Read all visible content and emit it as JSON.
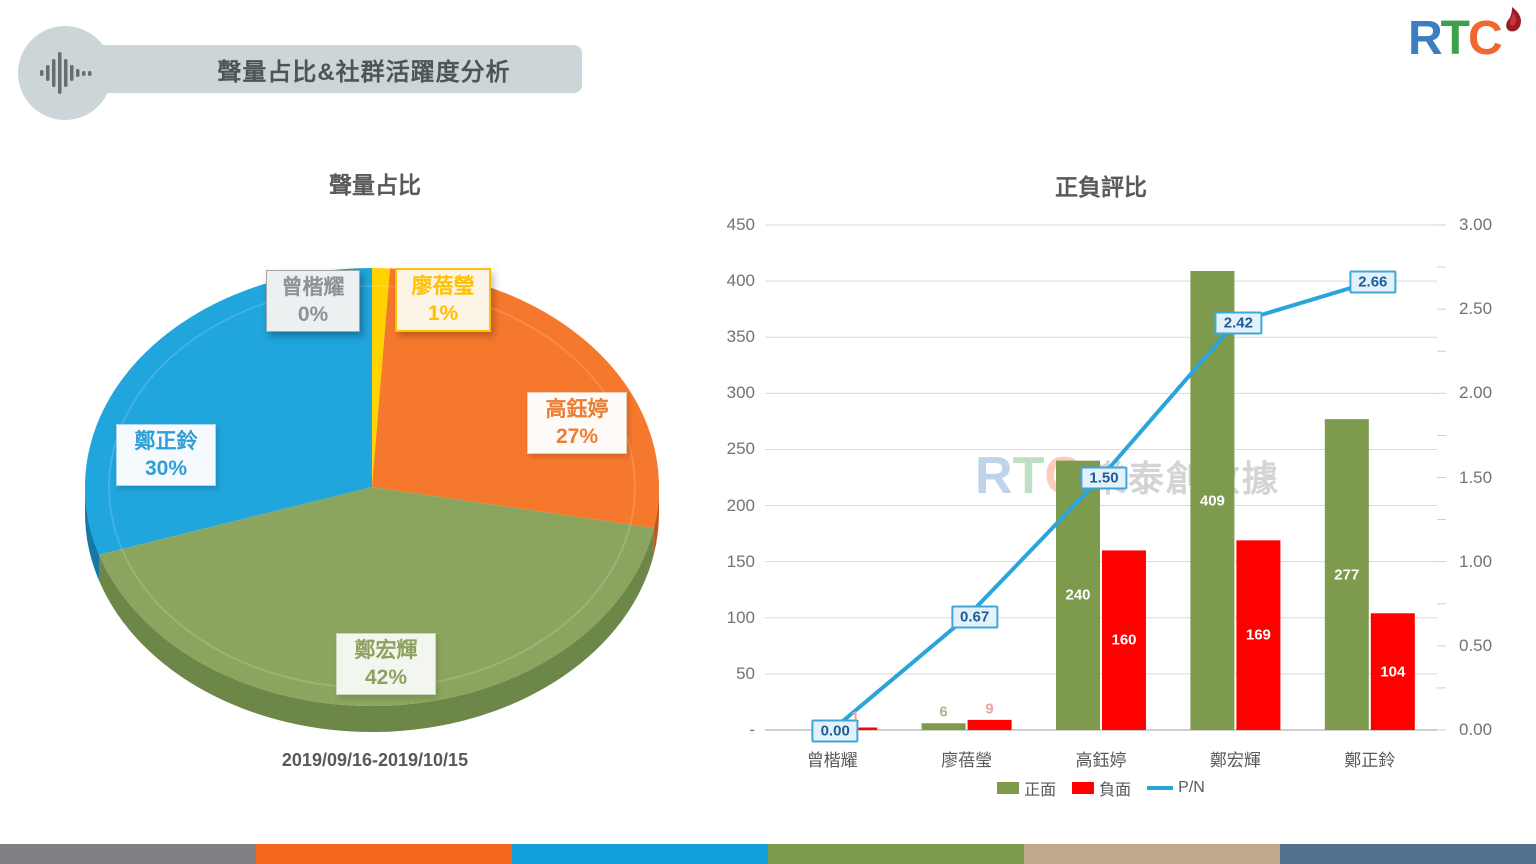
{
  "header": {
    "title": "聲量占比&社群活躍度分析"
  },
  "logo": {
    "r": "R",
    "t": "T",
    "c": "C"
  },
  "watermark": {
    "r": "R",
    "t": "T",
    "c": "C",
    "text": "樂泰創數據"
  },
  "chart_data": [
    {
      "type": "pie",
      "title": "聲量占比",
      "subtitle": "2019/09/16-2019/10/15",
      "labels": [
        "曾楷耀",
        "廖蓓瑩",
        "高鈺婷",
        "鄭宏輝",
        "鄭正鈴"
      ],
      "values": [
        0,
        1,
        27,
        42,
        30
      ],
      "pct_labels": [
        "0%",
        "1%",
        "27%",
        "42%",
        "30%"
      ],
      "colors": [
        "#b9bdbf",
        "#ffd200",
        "#f5782c",
        "#8ca55e",
        "#20a5dd"
      ],
      "dark_colors": [
        "#8e9294",
        "#c8a400",
        "#bf5a1d",
        "#6d8748",
        "#1679a5"
      ],
      "legend_position": "none",
      "style": "3d"
    },
    {
      "type": "bar",
      "title": "正負評比",
      "categories": [
        "曾楷耀",
        "廖蓓瑩",
        "高鈺婷",
        "鄭宏輝",
        "鄭正鈴"
      ],
      "series": [
        {
          "name": "正面",
          "kind": "bar",
          "color": "#7e9a4c",
          "values": [
            0,
            6,
            240,
            409,
            277
          ],
          "value_labels": [
            "",
            "6",
            "240",
            "409",
            "277"
          ],
          "small_label_color": "#a9b88c"
        },
        {
          "name": "負面",
          "kind": "bar",
          "color": "#fe0000",
          "values": [
            1,
            9,
            160,
            169,
            104
          ],
          "value_labels": [
            "1",
            "9",
            "160",
            "169",
            "104"
          ],
          "small_label_color": "#f3a2a2"
        },
        {
          "name": "P/N",
          "kind": "line",
          "color": "#2aa5dc",
          "values": [
            0.0,
            0.67,
            1.5,
            2.42,
            2.66
          ],
          "value_labels": [
            "0.00",
            "0.67",
            "1.50",
            "2.42",
            "2.66"
          ]
        }
      ],
      "left_axis": {
        "min": 0,
        "max": 450,
        "step": 50,
        "ticks": [
          "450",
          "400",
          "350",
          "300",
          "250",
          "200",
          "150",
          "100",
          "50",
          "-"
        ]
      },
      "right_axis": {
        "min": 0,
        "max": 3,
        "step": 0.5,
        "ticks": [
          "3.00",
          "2.50",
          "2.00",
          "1.50",
          "1.00",
          "0.50",
          "0.00"
        ]
      },
      "grid": true,
      "legend_position": "bottom"
    }
  ],
  "legend": {
    "positive": "正面",
    "negative": "負面",
    "pn": "P/N"
  },
  "colors": {
    "header_bg": "#ccd5d8",
    "grid": "#d9d9d9",
    "axis_line": "#bfbfbf",
    "pn_box_bg": "#e2f1fa",
    "pn_box_border": "#41a5d9",
    "pn_box_text": "#1f5c99"
  },
  "footer": {
    "stripe_colors": [
      "#808184",
      "#f3661b",
      "#11a0d9",
      "#7e9a4c",
      "#c0a98b",
      "#51718f"
    ]
  }
}
